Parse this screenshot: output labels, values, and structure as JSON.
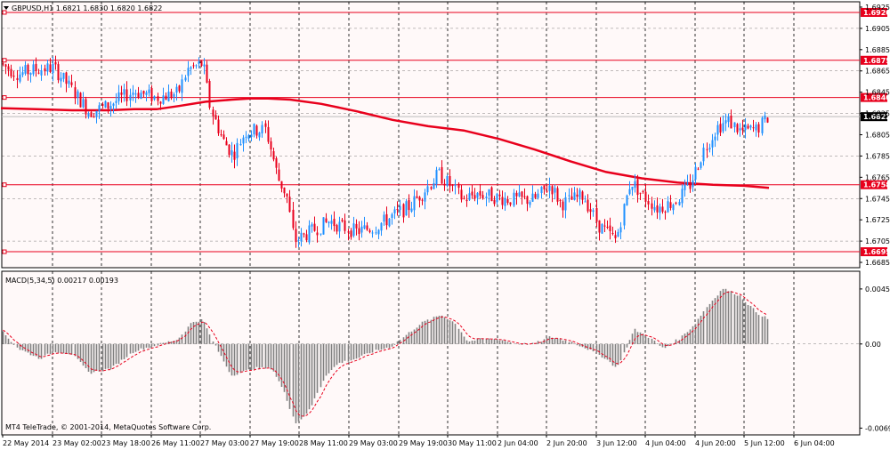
{
  "chart_data": [
    {
      "type": "candlestick",
      "header": "GBPUSD,H1  1.6821 1.6830 1.6820 1.6822",
      "symbol": "GBPUSD",
      "timeframe": "H1",
      "last_bar": {
        "open": 1.6821,
        "high": 1.683,
        "low": 1.682,
        "close": 1.6822
      },
      "current_price": 1.6822,
      "ylim": [
        1.668,
        1.693
      ],
      "y_ticks": [
        "1.6925",
        "1.6905",
        "1.6885",
        "1.6865",
        "1.6845",
        "1.6825",
        "1.6805",
        "1.6785",
        "1.6765",
        "1.6745",
        "1.6725",
        "1.6705",
        "1.6685"
      ],
      "x_ticks": [
        "22 May 2014",
        "23 May 02:00",
        "23 May 18:00",
        "26 May 11:00",
        "27 May 03:00",
        "27 May 19:00",
        "28 May 11:00",
        "29 May 03:00",
        "29 May 19:00",
        "30 May 11:00",
        "2 Jun 04:00",
        "2 Jun 20:00",
        "3 Jun 12:00",
        "4 Jun 04:00",
        "4 Jun 20:00",
        "5 Jun 12:00",
        "6 Jun 04:00"
      ],
      "horizontal_levels": [
        {
          "label": "1.6920",
          "value": 1.692
        },
        {
          "label": "1.6875",
          "value": 1.6875
        },
        {
          "label": "1.6840",
          "value": 1.684
        },
        {
          "label": "1.6758",
          "value": 1.6758
        },
        {
          "label": "1.6695",
          "value": 1.6695
        }
      ],
      "moving_average_path": [
        [
          0,
          1.683
        ],
        [
          40,
          1.6829
        ],
        [
          80,
          1.6828
        ],
        [
          120,
          1.6828
        ],
        [
          150,
          1.6829
        ],
        [
          175,
          1.6829
        ],
        [
          200,
          1.6832
        ],
        [
          230,
          1.6836
        ],
        [
          260,
          1.6838
        ],
        [
          280,
          1.6839
        ],
        [
          300,
          1.6839
        ],
        [
          325,
          1.6838
        ],
        [
          360,
          1.6834
        ],
        [
          400,
          1.6827
        ],
        [
          440,
          1.6819
        ],
        [
          480,
          1.6813
        ],
        [
          520,
          1.6809
        ],
        [
          560,
          1.6801
        ],
        [
          600,
          1.6791
        ],
        [
          640,
          1.678
        ],
        [
          680,
          1.677
        ],
        [
          720,
          1.6764
        ],
        [
          760,
          1.676
        ],
        [
          800,
          1.6758
        ],
        [
          835,
          1.6757
        ],
        [
          863,
          1.6755
        ]
      ],
      "price_keyframes": [
        [
          0,
          1.6872
        ],
        [
          20,
          1.6862
        ],
        [
          38,
          1.6866
        ],
        [
          60,
          1.6868
        ],
        [
          80,
          1.6848
        ],
        [
          100,
          1.6826
        ],
        [
          120,
          1.6832
        ],
        [
          150,
          1.6846
        ],
        [
          175,
          1.684
        ],
        [
          200,
          1.6844
        ],
        [
          210,
          1.6866
        ],
        [
          228,
          1.6872
        ],
        [
          236,
          1.683
        ],
        [
          250,
          1.68
        ],
        [
          262,
          1.6786
        ],
        [
          275,
          1.6808
        ],
        [
          298,
          1.681
        ],
        [
          305,
          1.6788
        ],
        [
          312,
          1.6764
        ],
        [
          322,
          1.6748
        ],
        [
          330,
          1.6705
        ],
        [
          345,
          1.6712
        ],
        [
          370,
          1.6724
        ],
        [
          385,
          1.6718
        ],
        [
          400,
          1.6714
        ],
        [
          420,
          1.6718
        ],
        [
          440,
          1.6728
        ],
        [
          460,
          1.6738
        ],
        [
          478,
          1.6754
        ],
        [
          492,
          1.6768
        ],
        [
          505,
          1.6758
        ],
        [
          520,
          1.6744
        ],
        [
          535,
          1.675
        ],
        [
          558,
          1.6746
        ],
        [
          575,
          1.6744
        ],
        [
          600,
          1.6744
        ],
        [
          618,
          1.6758
        ],
        [
          630,
          1.674
        ],
        [
          655,
          1.6748
        ],
        [
          672,
          1.672
        ],
        [
          692,
          1.6706
        ],
        [
          708,
          1.6762
        ],
        [
          722,
          1.6748
        ],
        [
          738,
          1.6736
        ],
        [
          758,
          1.6742
        ],
        [
          775,
          1.6758
        ],
        [
          790,
          1.679
        ],
        [
          805,
          1.6812
        ],
        [
          818,
          1.6818
        ],
        [
          832,
          1.6808
        ],
        [
          850,
          1.681
        ],
        [
          863,
          1.6822
        ]
      ],
      "indicator": {
        "name": "MACD(5,34,5)",
        "header": "MACD(5,34,5) 0.00217 0.00193",
        "ylim": [
          -0.0075,
          0.006
        ],
        "y_ticks": [
          "0.00454",
          "0.00",
          "-0.00694"
        ],
        "keyframes": [
          [
            0,
            0.0012
          ],
          [
            20,
            -0.0004
          ],
          [
            45,
            -0.0012
          ],
          [
            60,
            -0.0006
          ],
          [
            80,
            -0.0008
          ],
          [
            100,
            -0.0024
          ],
          [
            125,
            -0.002
          ],
          [
            150,
            -0.0006
          ],
          [
            180,
            0.0
          ],
          [
            200,
            0.0004
          ],
          [
            215,
            0.0018
          ],
          [
            228,
            0.002
          ],
          [
            240,
            0.0
          ],
          [
            260,
            -0.0026
          ],
          [
            285,
            -0.002
          ],
          [
            305,
            -0.002
          ],
          [
            318,
            -0.0038
          ],
          [
            332,
            -0.0066
          ],
          [
            348,
            -0.0054
          ],
          [
            365,
            -0.0026
          ],
          [
            380,
            -0.0016
          ],
          [
            400,
            -0.0012
          ],
          [
            420,
            -0.0006
          ],
          [
            440,
            -0.0002
          ],
          [
            460,
            0.001
          ],
          [
            475,
            0.0018
          ],
          [
            495,
            0.0024
          ],
          [
            510,
            0.0018
          ],
          [
            525,
            0.0002
          ],
          [
            540,
            0.0004
          ],
          [
            560,
            0.0004
          ],
          [
            580,
            0.0
          ],
          [
            600,
            0.0
          ],
          [
            618,
            0.0006
          ],
          [
            640,
            0.0002
          ],
          [
            660,
            -0.0004
          ],
          [
            680,
            -0.0012
          ],
          [
            693,
            -0.002
          ],
          [
            712,
            0.0012
          ],
          [
            728,
            0.0006
          ],
          [
            745,
            -0.0004
          ],
          [
            762,
            0.0004
          ],
          [
            780,
            0.0016
          ],
          [
            795,
            0.0032
          ],
          [
            812,
            0.0046
          ],
          [
            830,
            0.004
          ],
          [
            850,
            0.0026
          ],
          [
            863,
            0.002
          ]
        ]
      }
    }
  ],
  "footer": {
    "copyright": "MT4 TeleTrade, © 2001-2014, MetaQuotes Software Corp."
  }
}
